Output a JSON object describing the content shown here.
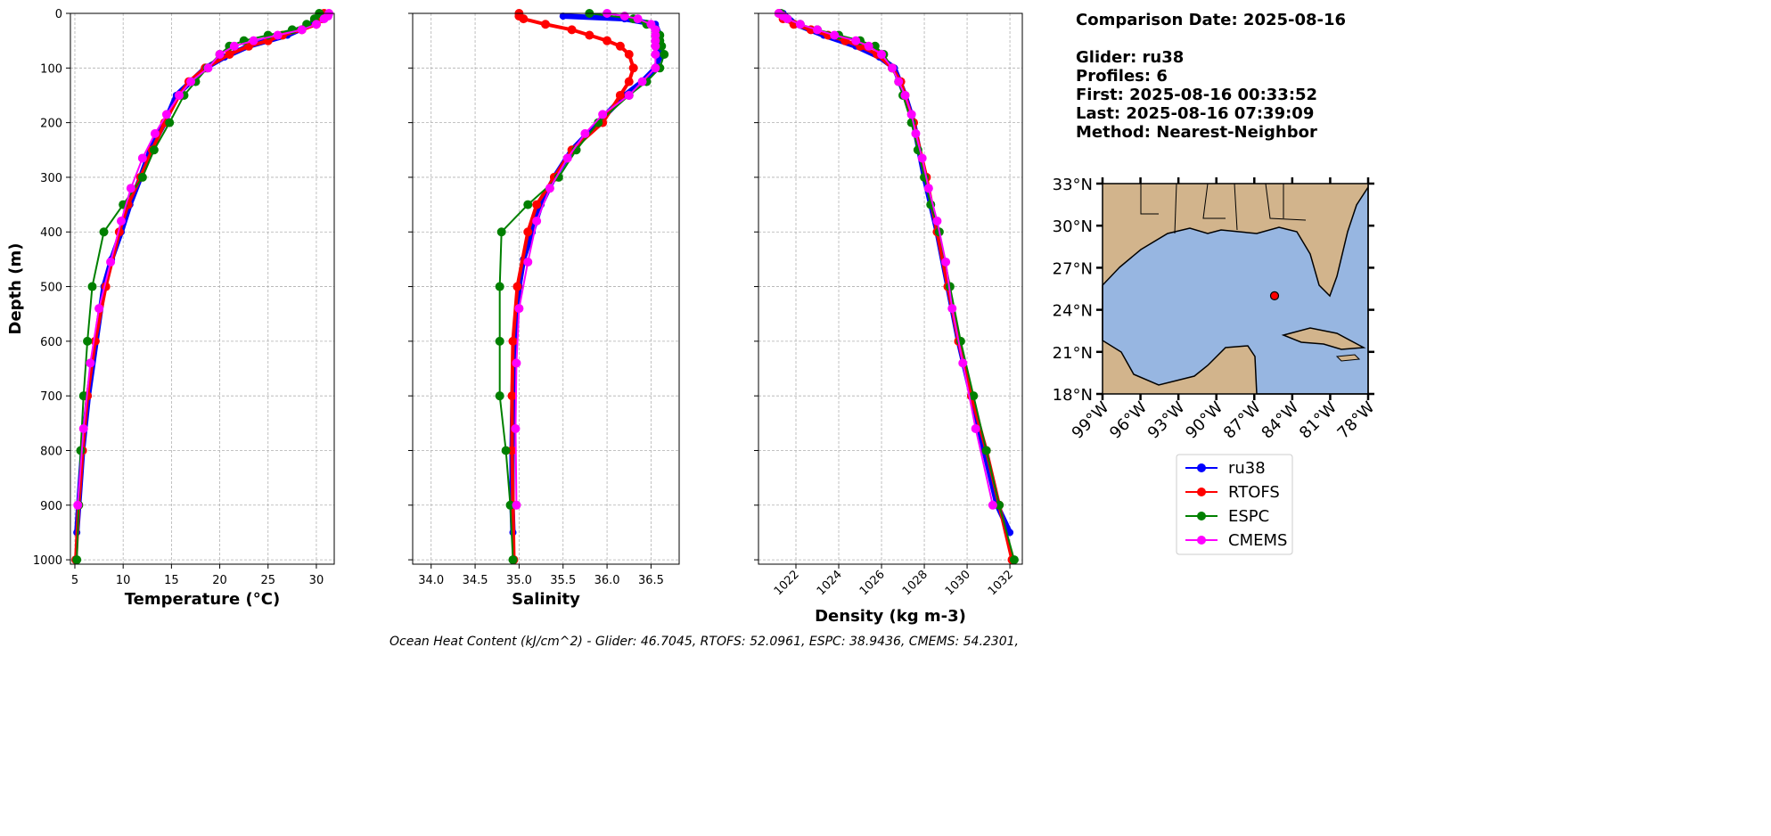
{
  "chart_data": [
    {
      "type": "profile",
      "xlabel": "Temperature (°C)",
      "ylabel": "Depth (m)",
      "xlim": [
        4.54,
        31.85
      ],
      "ylim": [
        0,
        1008
      ],
      "invert_y": true,
      "grid": true,
      "xticks": [
        5,
        10,
        15,
        20,
        25,
        30
      ],
      "yticks": [
        0,
        100,
        200,
        300,
        400,
        500,
        600,
        700,
        800,
        900,
        1000
      ],
      "series": [
        {
          "name": "ru38",
          "color": "#0000ff",
          "depth": [
            0,
            20,
            40,
            60,
            80,
            100,
            125,
            150,
            200,
            250,
            300,
            350,
            400,
            450,
            500,
            600,
            700,
            800,
            900,
            950
          ],
          "values": [
            30.5,
            29.5,
            27,
            23,
            20.5,
            18.5,
            17,
            15.5,
            14.3,
            12.8,
            11.8,
            10.7,
            9.8,
            8.8,
            8.0,
            7.2,
            6.4,
            5.8,
            5.4,
            5.2
          ]
        },
        {
          "name": "RTOFS",
          "color": "#ff0000",
          "depth": [
            0,
            10,
            20,
            30,
            40,
            50,
            60,
            75,
            100,
            125,
            150,
            200,
            250,
            300,
            350,
            400,
            500,
            600,
            700,
            800,
            900,
            1000
          ],
          "values": [
            30.8,
            30.6,
            30,
            28.5,
            26.5,
            25,
            23,
            21,
            18.5,
            16.8,
            15.8,
            14.3,
            13,
            11.8,
            10.5,
            9.6,
            8.2,
            7.1,
            6.3,
            5.8,
            5.4,
            5.1
          ]
        },
        {
          "name": "ESPC",
          "color": "#008000",
          "depth": [
            0,
            10,
            20,
            30,
            40,
            50,
            60,
            75,
            100,
            125,
            150,
            200,
            250,
            300,
            350,
            400,
            500,
            600,
            700,
            800,
            900,
            1000
          ],
          "values": [
            30.3,
            29.8,
            29,
            27.5,
            25,
            22.5,
            21,
            20,
            18.7,
            17.5,
            16.3,
            14.8,
            13.2,
            12,
            10,
            8,
            6.8,
            6.3,
            5.9,
            5.6,
            5.4,
            5.2
          ]
        },
        {
          "name": "CMEMS",
          "color": "#ff00ff",
          "depth": [
            0,
            5,
            10,
            20,
            30,
            40,
            50,
            60,
            75,
            100,
            125,
            150,
            185,
            220,
            265,
            320,
            380,
            455,
            540,
            640,
            760,
            900
          ],
          "values": [
            31.3,
            31.2,
            30.8,
            30,
            28.5,
            26,
            23.5,
            21.5,
            20,
            18.8,
            17,
            15.8,
            14.5,
            13.3,
            12,
            10.8,
            9.8,
            8.7,
            7.5,
            6.6,
            5.9,
            5.3
          ]
        }
      ]
    },
    {
      "type": "profile",
      "xlabel": "Salinity",
      "xlim": [
        33.79,
        36.82
      ],
      "ylim": [
        0,
        1008
      ],
      "invert_y": true,
      "grid": true,
      "xticks": [
        {
          "value": 34,
          "label": "34.0"
        },
        34.5,
        {
          "value": 35,
          "label": "35.0"
        },
        35.5,
        {
          "value": 36,
          "label": "36.0"
        },
        36.5
      ],
      "yticks": [
        0,
        100,
        200,
        300,
        400,
        500,
        600,
        700,
        800,
        900,
        1000
      ],
      "series": [
        {
          "name": "ru38",
          "color": "#0000ff",
          "depth": [
            5,
            10,
            20,
            40,
            60,
            80,
            100,
            125,
            150,
            200,
            250,
            300,
            350,
            400,
            450,
            500,
            600,
            700,
            800,
            900,
            950
          ],
          "values": [
            35.5,
            36.2,
            36.55,
            36.6,
            36.6,
            36.6,
            36.55,
            36.4,
            36.2,
            35.9,
            35.6,
            35.4,
            35.25,
            35.15,
            35.05,
            35.0,
            34.95,
            34.93,
            34.92,
            34.92,
            34.93
          ]
        },
        {
          "name": "RTOFS",
          "color": "#ff0000",
          "depth": [
            0,
            5,
            10,
            20,
            30,
            40,
            50,
            60,
            75,
            100,
            125,
            150,
            200,
            250,
            300,
            350,
            400,
            500,
            600,
            700,
            800,
            900,
            1000
          ],
          "values": [
            35.0,
            35.0,
            35.05,
            35.3,
            35.6,
            35.8,
            36.0,
            36.15,
            36.25,
            36.3,
            36.25,
            36.15,
            35.95,
            35.6,
            35.4,
            35.2,
            35.1,
            34.98,
            34.93,
            34.92,
            34.92,
            34.93,
            34.94
          ]
        },
        {
          "name": "ESPC",
          "color": "#008000",
          "depth": [
            0,
            10,
            20,
            30,
            40,
            50,
            60,
            75,
            100,
            125,
            150,
            200,
            250,
            300,
            350,
            400,
            500,
            600,
            700,
            800,
            900,
            1000
          ],
          "values": [
            35.8,
            36.3,
            36.45,
            36.55,
            36.6,
            36.6,
            36.62,
            36.65,
            36.6,
            36.45,
            36.25,
            35.9,
            35.65,
            35.45,
            35.1,
            34.8,
            34.78,
            34.78,
            34.78,
            34.85,
            34.9,
            34.93
          ]
        },
        {
          "name": "CMEMS",
          "color": "#ff00ff",
          "depth": [
            0,
            5,
            10,
            20,
            30,
            40,
            50,
            60,
            75,
            100,
            125,
            150,
            185,
            220,
            265,
            320,
            380,
            455,
            540,
            640,
            760,
            900
          ],
          "values": [
            36.0,
            36.2,
            36.35,
            36.5,
            36.55,
            36.55,
            36.55,
            36.55,
            36.55,
            36.55,
            36.4,
            36.25,
            35.95,
            35.75,
            35.55,
            35.35,
            35.2,
            35.1,
            35.0,
            34.97,
            34.96,
            34.97
          ]
        }
      ]
    },
    {
      "type": "profile",
      "xlabel": "Density (kg m-3)",
      "rotate_xticks": true,
      "xlim": [
        1020.25,
        1032.58
      ],
      "ylim": [
        0,
        1008
      ],
      "invert_y": true,
      "grid": true,
      "xticks": [
        1022,
        1024,
        1026,
        1028,
        1030,
        1032
      ],
      "yticks": [
        0,
        100,
        200,
        300,
        400,
        500,
        600,
        700,
        800,
        900,
        1000
      ],
      "series": [
        {
          "name": "ru38",
          "color": "#0000ff",
          "depth": [
            0,
            20,
            40,
            60,
            80,
            100,
            150,
            200,
            300,
            400,
            500,
            600,
            700,
            800,
            900,
            950
          ],
          "values": [
            1021.4,
            1022,
            1023.3,
            1024.8,
            1025.9,
            1026.6,
            1027.1,
            1027.5,
            1028.0,
            1028.6,
            1029.1,
            1029.6,
            1030.2,
            1030.8,
            1031.4,
            1032.0
          ]
        },
        {
          "name": "RTOFS",
          "color": "#ff0000",
          "depth": [
            0,
            10,
            20,
            30,
            40,
            50,
            60,
            75,
            100,
            125,
            150,
            200,
            300,
            400,
            500,
            600,
            700,
            800,
            900,
            1000
          ],
          "values": [
            1021.2,
            1021.4,
            1021.9,
            1022.7,
            1023.5,
            1024.3,
            1025.0,
            1025.8,
            1026.5,
            1026.9,
            1027.1,
            1027.5,
            1028.1,
            1028.6,
            1029.1,
            1029.6,
            1030.2,
            1030.9,
            1031.5,
            1032.1
          ]
        },
        {
          "name": "ESPC",
          "color": "#008000",
          "depth": [
            0,
            10,
            20,
            30,
            40,
            50,
            60,
            75,
            100,
            125,
            150,
            200,
            250,
            300,
            350,
            400,
            500,
            600,
            700,
            800,
            900,
            1000
          ],
          "values": [
            1021.3,
            1021.6,
            1022.2,
            1023,
            1024,
            1025,
            1025.7,
            1026.1,
            1026.5,
            1026.8,
            1027.0,
            1027.4,
            1027.7,
            1028.0,
            1028.3,
            1028.7,
            1029.2,
            1029.7,
            1030.3,
            1030.9,
            1031.5,
            1032.2
          ]
        },
        {
          "name": "CMEMS",
          "color": "#ff00ff",
          "depth": [
            0,
            5,
            10,
            20,
            30,
            40,
            50,
            60,
            75,
            100,
            125,
            150,
            185,
            220,
            265,
            320,
            380,
            455,
            540,
            640,
            760,
            900
          ],
          "values": [
            1021.2,
            1021.4,
            1021.6,
            1022.2,
            1023,
            1023.8,
            1024.8,
            1025.4,
            1026,
            1026.5,
            1026.8,
            1027.1,
            1027.4,
            1027.6,
            1027.9,
            1028.2,
            1028.6,
            1029.0,
            1029.3,
            1029.8,
            1030.4,
            1031.2
          ]
        }
      ]
    },
    {
      "type": "map",
      "xlim": [
        -99,
        -78
      ],
      "ylim": [
        18,
        33
      ],
      "xticks": [
        {
          "value": -99,
          "label": "99°W"
        },
        {
          "value": -96,
          "label": "96°W"
        },
        {
          "value": -93,
          "label": "93°W"
        },
        {
          "value": -90,
          "label": "90°W"
        },
        {
          "value": -87,
          "label": "87°W"
        },
        {
          "value": -84,
          "label": "84°W"
        },
        {
          "value": -81,
          "label": "81°W"
        },
        {
          "value": -78,
          "label": "78°W"
        }
      ],
      "yticks": [
        {
          "value": 18,
          "label": "18°N"
        },
        {
          "value": 21,
          "label": "21°N"
        },
        {
          "value": 24,
          "label": "24°N"
        },
        {
          "value": 27,
          "label": "27°N"
        },
        {
          "value": 30,
          "label": "30°N"
        },
        {
          "value": 33,
          "label": "33°N"
        }
      ],
      "points": [
        {
          "lon": -85.4,
          "lat": 25.0,
          "color": "#ff0000"
        }
      ]
    }
  ],
  "info": [
    "Comparison Date: 2025-08-16",
    "Glider: ru38",
    "Profiles: 6",
    "First: 2025-08-16 00:33:52",
    "Last: 2025-08-16 07:39:09",
    "Method: Nearest-Neighbor"
  ],
  "footer": "Ocean Heat Content (kJ/cm^2) - Glider: 46.7045,  RTOFS: 52.0961,  ESPC: 38.9436,  CMEMS: 54.2301,"
}
